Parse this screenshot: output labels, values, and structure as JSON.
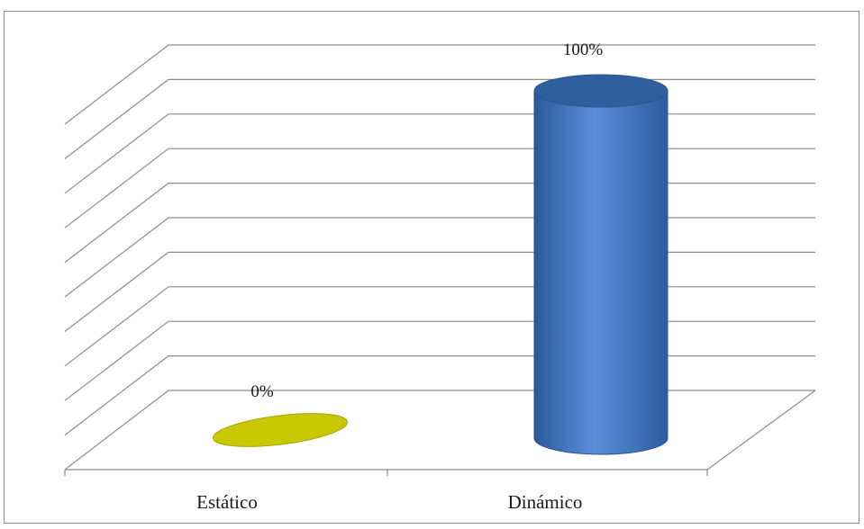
{
  "chart_data": {
    "type": "bar",
    "categories": [
      "Estático",
      "Dinámico"
    ],
    "values": [
      0,
      100
    ],
    "data_labels": [
      "0%",
      "100%"
    ],
    "ylim": [
      0,
      100
    ],
    "grid": true,
    "title": "",
    "xlabel": "",
    "ylabel": "",
    "colors": {
      "series_points": [
        "#c8c800",
        "#3f74c0"
      ],
      "grid": "#8c8c8c",
      "frame": "#8a8a8a"
    }
  }
}
